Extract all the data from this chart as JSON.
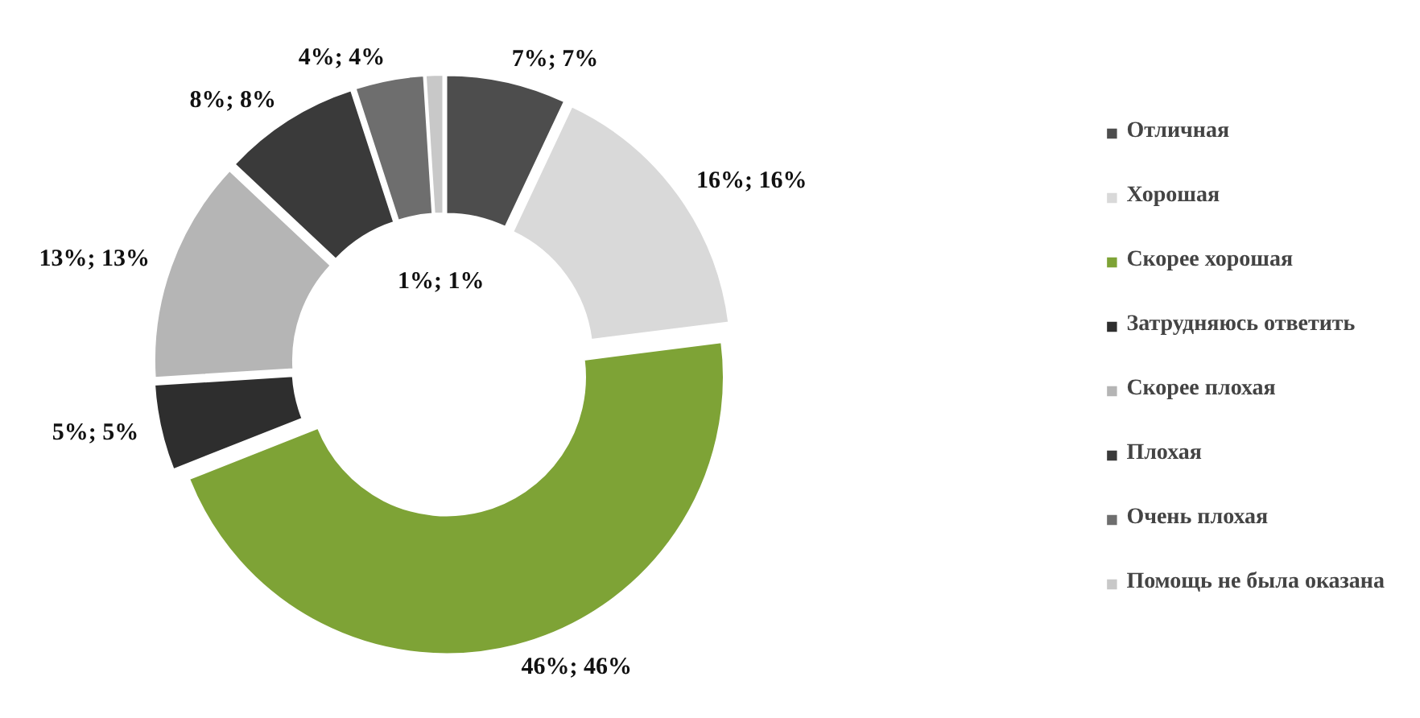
{
  "chart_data": {
    "type": "donut",
    "categories": [
      "Отличная",
      "Хорошая",
      "Скорее хорошая",
      "Затрудняюсь ответить",
      "Скорее плохая",
      "Плохая",
      "Очень плохая",
      "Помощь не была оказана"
    ],
    "values": [
      7,
      16,
      46,
      5,
      13,
      8,
      4,
      1
    ],
    "colors": [
      "#4d4d4d",
      "#d9d9d9",
      "#7ea336",
      "#2e2e2e",
      "#b5b5b5",
      "#3a3a3a",
      "#6e6e6e",
      "#c8c8c8"
    ],
    "value_labels": [
      "7%; 7%",
      "16%; 16%",
      "46%; 46%",
      "5%; 5%",
      "13%; 13%",
      "8%; 8%",
      "4%; 4%",
      "1%; 1%"
    ],
    "legend": "right"
  }
}
